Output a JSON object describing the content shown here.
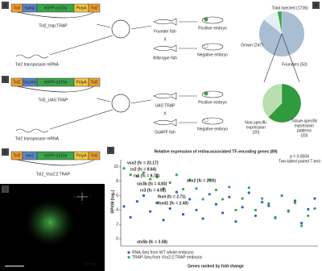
{
  "panels": {
    "A": {
      "letter": "A",
      "construct": [
        "Tol2",
        "Gal4p",
        "eGFP-rpl10a",
        "PolyA",
        "Tol2"
      ],
      "construct_name": "Tol2_trap:TRAP",
      "mrna": "Tol2 transposase mRNA",
      "cross": "X",
      "fish1": "Founder fish",
      "fish2": "Wild-type fish",
      "positive": "Positive embryo",
      "negative": "Negative embryo"
    },
    "B": {
      "letter": "B",
      "pie1": {
        "type": "pie",
        "labels": [
          "Total injected (1736)",
          "Grown (247)",
          "Founders (53)"
        ],
        "values": [
          1736,
          247,
          53
        ],
        "colors": [
          "#a9bdd3",
          "#e4eef4",
          "#3aa54a"
        ]
      },
      "pie2": {
        "type": "pie",
        "labels": [
          [
            "Non-specific",
            "expression",
            "(20)"
          ],
          [
            "Tissue-specific",
            "expression",
            "patterns",
            "(33)"
          ]
        ],
        "values": [
          20,
          33
        ],
        "colors": [
          "#b7dfb0",
          "#2f9a3e"
        ]
      }
    },
    "C": {
      "letter": "C",
      "construct": [
        "Tol2",
        "5xUAS",
        "eGFP-rpl10a",
        "PolyA",
        "Tol2"
      ],
      "construct_name": "Tol2_UAS:TRAP",
      "mrna": "Tol2 transposase mRNA",
      "cross": "X",
      "fish1": "UAS:TRAP",
      "fish2": "Gal4FF fish",
      "positive": "Positive embryo",
      "negative": "Negative embryo"
    },
    "D": {
      "letter": "D",
      "construct": [
        "Tol2",
        "vsx2",
        "eGFP-rpl10a",
        "PolyA",
        "Tol2"
      ],
      "construct_name": "Tol2_Vsx2:2:TRAP"
    },
    "E": {
      "letter": "E",
      "label": "L",
      "stage": "22 hpf",
      "compass": [
        "A",
        "P",
        "D",
        "V"
      ]
    },
    "F": {
      "letter": "F",
      "type": "scatter",
      "title": "Relative expression of retina-associated TF-encoding genes (89)",
      "stat": [
        "p = 0.0004",
        "Two-tailed paired T-test"
      ],
      "y_label": "RPKM (log₂)",
      "x_label": "Genes ranked by fold change",
      "ylim": [
        -1,
        11
      ],
      "yticks": [
        0,
        2,
        4,
        6,
        8,
        10
      ],
      "annotations": [
        "vsx2 (fc = 22.17)",
        "rx2 (fc = 8.64)",
        "rx1 (fc = 6.78)",
        "six3b (fc = 4.83)",
        "rx3 (fc = 4.58)",
        "lhx4 (fc = 2.71)",
        "foxd1 (fc = 2.40)",
        "sox2 (fc = 2.00)",
        "otx5b (fc = 3.58)"
      ],
      "series": [
        {
          "name": "RNA-Seq from WT whole embryos",
          "color": "#2f63c0",
          "values": [
            4.5,
            3,
            5.2,
            6,
            3.8,
            5,
            2.6,
            4.2,
            6.5,
            3.4,
            5.5,
            4,
            2.8,
            6.2,
            4.8,
            3.6,
            5.8,
            2.4,
            4.4,
            6.4,
            3.2,
            5.1,
            4.6,
            2.9,
            6,
            3.9,
            5.3,
            2.2,
            4.1,
            5.6
          ]
        },
        {
          "name": "TRAP-Seq from Vsx2:2:TRAP embryos",
          "color": "#3aa54a",
          "values": [
            9.8,
            8.9,
            8.7,
            9.2,
            8.3,
            8.6,
            7,
            7.8,
            8.9,
            6.9,
            8.2,
            7,
            5.5,
            8.2,
            6.8,
            5.5,
            7.2,
            4,
            5.6,
            7.1,
            4,
            5.6,
            4.9,
            3,
            6,
            3.8,
            5,
            1.8,
            3.2,
            4.2
          ]
        }
      ]
    }
  }
}
